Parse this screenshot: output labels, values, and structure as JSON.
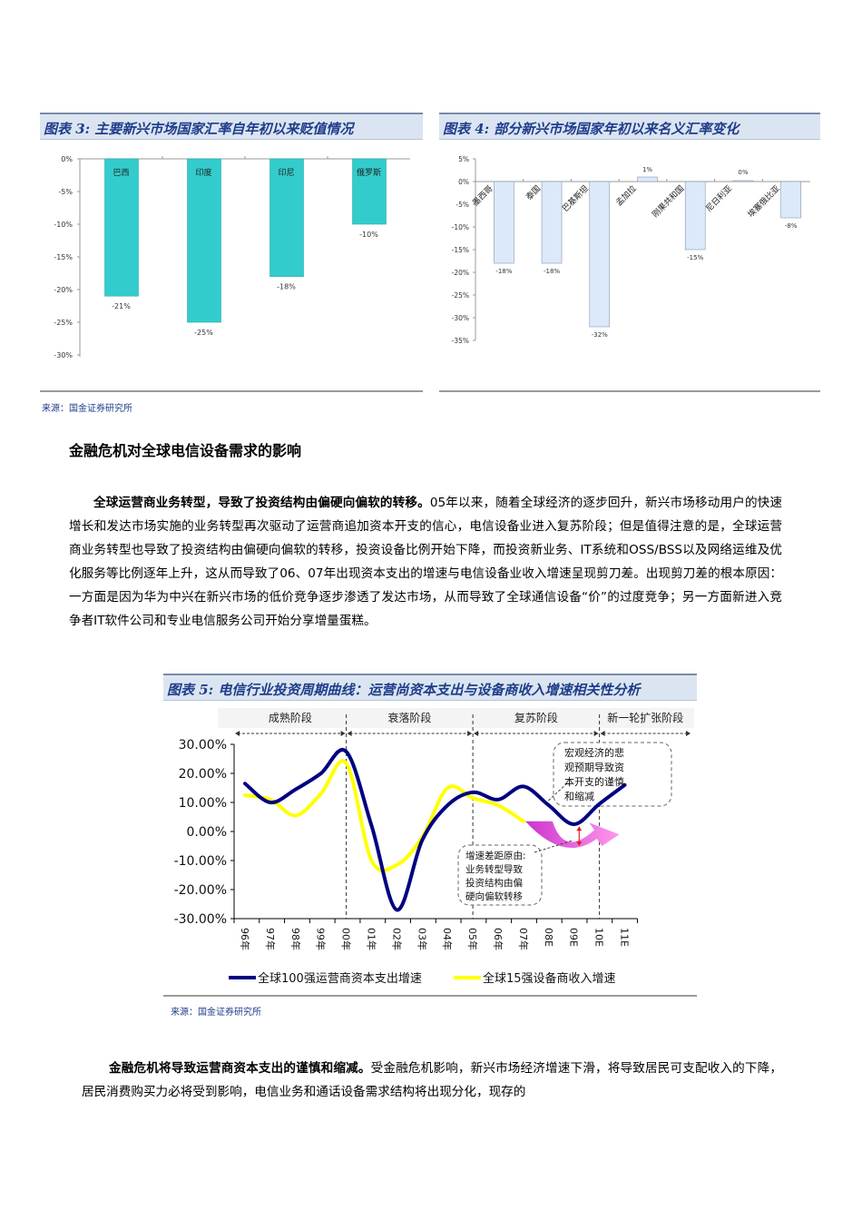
{
  "figure3": {
    "title": "图表 3:  主要新兴市场国家汇率自年初以来贬值情况",
    "source": "来源：国金证券研究所"
  },
  "figure4": {
    "title": "图表 4:  部分新兴市场国家年初以来名义汇率变化"
  },
  "figure5": {
    "title": "图表 5:  电信行业投资周期曲线：运营尚资本支出与设备商收入增速相关性分析",
    "source": "来源：国金证券研究所",
    "phases": [
      "成熟阶段",
      "衰落阶段",
      "复苏阶段",
      "新一轮扩张阶段"
    ],
    "callout_top": [
      "宏观经济的悲",
      "观预期导致资",
      "本开支的谨慎",
      "和缩减"
    ],
    "callout_bottom": [
      "增速差距原由:",
      "业务转型导致",
      "投资结构由偏",
      "硬向偏软转移"
    ]
  },
  "section": {
    "heading": "金融危机对全球电信设备需求的影响",
    "para1_bold": "全球运营商业务转型，导致了投资结构由偏硬向偏软的转移。",
    "para1_rest": "05年以来，随着全球经济的逐步回升，新兴市场移动用户的快速增长和发达市场实施的业务转型再次驱动了运营商追加资本开支的信心，电信设备业进入复苏阶段；但是值得注意的是，全球运营商业务转型也导致了投资结构由偏硬向偏软的转移，投资设备比例开始下降，而投资新业务、IT系统和OSS/BSS以及网络运维及优化服务等比例逐年上升，这从而导致了06、07年出现资本支出的增速与电信设备业收入增速呈现剪刀差。出现剪刀差的根本原因：一方面是因为华为中兴在新兴市场的低价竞争逐步渗透了发达市场，从而导致了全球通信设备“价”的过度竞争；另一方面新进入竞争者IT软件公司和专业电信服务公司开始分享增量蛋糕。",
    "para2_bold": "金融危机将导致运营商资本支出的谨慎和缩减。",
    "para2_rest": "受金融危机影响，新兴市场经济增速下滑，将导致居民可支配收入的下降，居民消费购买力必将受到影响，电信业务和通话设备需求结构将出现分化，现存的"
  },
  "chart_data": [
    {
      "type": "bar",
      "title": "主要新兴市场国家汇率自年初以来贬值情况",
      "categories": [
        "巴西",
        "印度",
        "印尼",
        "俄罗斯"
      ],
      "values": [
        -21,
        -25,
        -18,
        -10
      ],
      "value_labels": [
        "-21%",
        "-25%",
        "-18%",
        "-10%"
      ],
      "ylabel": "",
      "xlabel": "",
      "ylim": [
        -30,
        0
      ],
      "yticks": [
        "0%",
        "-5%",
        "-10%",
        "-15%",
        "-20%",
        "-25%",
        "-30%"
      ],
      "color": "#33cccc",
      "grid": false
    },
    {
      "type": "bar",
      "title": "部分新兴市场国家年初以来名义汇率变化",
      "categories": [
        "墨西哥",
        "泰国",
        "巴基斯坦",
        "孟加拉",
        "刚果共和国",
        "尼日利亚",
        "埃塞俄比亚"
      ],
      "values": [
        -18,
        -18,
        -32,
        1,
        -15,
        0,
        -8
      ],
      "value_labels": [
        "-18%",
        "-18%",
        "-32%",
        "1%",
        "-15%",
        "0%",
        "-8%"
      ],
      "ylabel": "",
      "xlabel": "",
      "ylim": [
        -35,
        5
      ],
      "yticks": [
        "5%",
        "0%",
        "-5%",
        "-10%",
        "-15%",
        "-20%",
        "-25%",
        "-30%",
        "-35%"
      ],
      "color": "#dbe9fb",
      "grid": false
    },
    {
      "type": "line",
      "title": "电信行业投资周期曲线：运营尚资本支出与设备商收入增速相关性分析",
      "x": [
        "96年",
        "97年",
        "98年",
        "99年",
        "00年",
        "01年",
        "02年",
        "03年",
        "04年",
        "05年",
        "06年",
        "07年",
        "08E",
        "09E",
        "10E",
        "11E"
      ],
      "yticks": [
        "30.00%",
        "20.00%",
        "10.00%",
        "0.00%",
        "-10.00%",
        "-20.00%",
        "-30.00%"
      ],
      "ylim": [
        -30,
        30
      ],
      "series": [
        {
          "name": "全球100强运营商资本支出增速",
          "color": "#000080",
          "values": [
            16.5,
            10,
            14.5,
            20,
            27.5,
            2,
            -27,
            -3,
            9,
            13.5,
            11,
            15.5,
            9,
            2.5,
            9.5,
            16
          ]
        },
        {
          "name": "全球15强设备商收入增速",
          "color": "#ffff00",
          "values": [
            12.5,
            11,
            5.5,
            13,
            23.5,
            -10,
            -11.5,
            -2,
            15,
            11.5,
            9,
            3.5,
            null,
            null,
            null,
            null
          ]
        }
      ],
      "phases": [
        {
          "label": "成熟阶段",
          "from": "96年",
          "to": "00年"
        },
        {
          "label": "衰落阶段",
          "from": "00年",
          "to": "05年"
        },
        {
          "label": "复苏阶段",
          "from": "05年",
          "to": "10E"
        },
        {
          "label": "新一轮扩张阶段",
          "from": "10E",
          "to": "11E"
        }
      ],
      "annotations": [
        "宏观经济的悲观预期导致资本开支的谨慎和缩减",
        "增速差距原由:业务转型导致投资结构由偏硬向偏软转移"
      ],
      "legend_position": "bottom",
      "grid": false
    }
  ]
}
